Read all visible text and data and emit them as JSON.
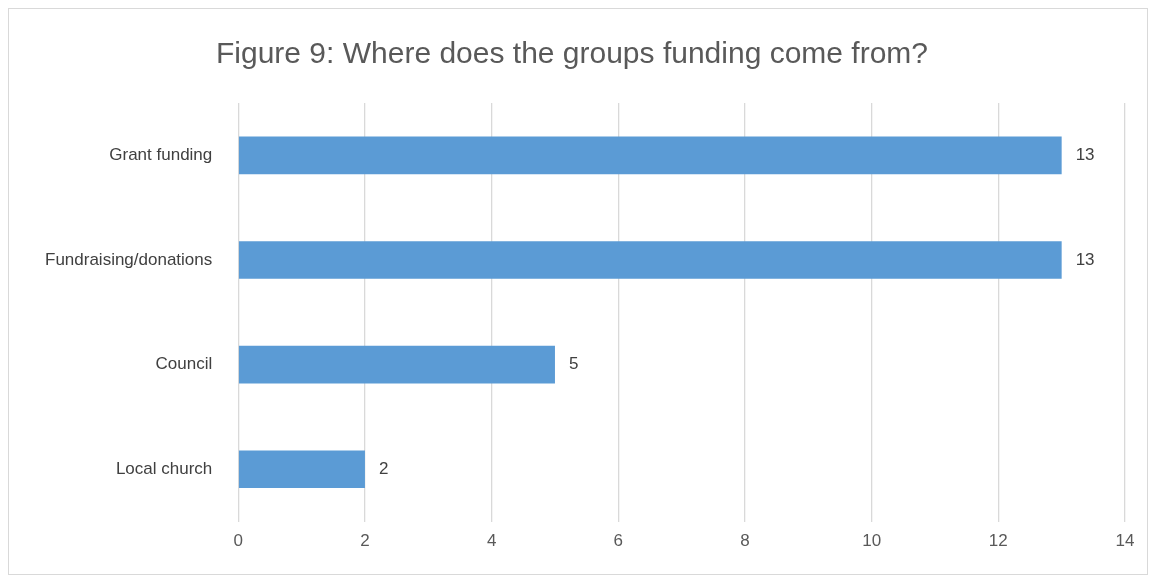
{
  "chart_data": {
    "type": "bar",
    "orientation": "horizontal",
    "title": "Figure 9: Where does the groups funding come from?",
    "categories": [
      "Grant funding",
      "Fundraising/donations",
      "Council",
      "Local church"
    ],
    "values": [
      13,
      13,
      5,
      2
    ],
    "color": "#5b9bd5",
    "xlim": [
      0,
      14
    ],
    "xticks": [
      0,
      2,
      4,
      6,
      8,
      10,
      12,
      14
    ],
    "grid": "x",
    "data_labels": true,
    "legend": false
  }
}
